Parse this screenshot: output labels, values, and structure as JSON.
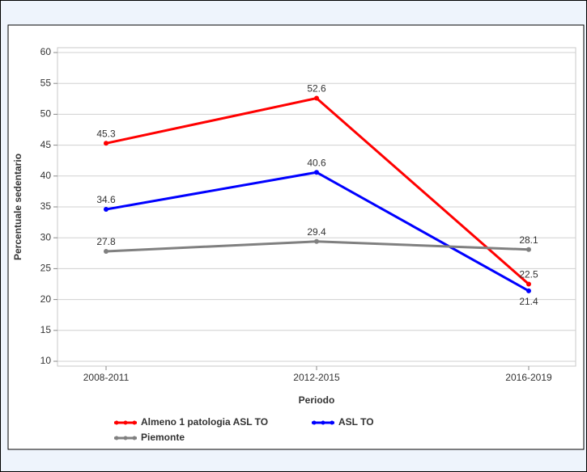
{
  "chart_data": {
    "type": "line",
    "categories": [
      "2008-2011",
      "2012-2015",
      "2016-2019"
    ],
    "series": [
      {
        "name": "Almeno 1 patologia ASL TO",
        "color": "#ff0000",
        "values": [
          45.3,
          52.6,
          22.5
        ]
      },
      {
        "name": "ASL TO",
        "color": "#0000ff",
        "values": [
          34.6,
          40.6,
          21.4
        ]
      },
      {
        "name": "Piemonte",
        "color": "#808080",
        "values": [
          27.8,
          29.4,
          28.1
        ]
      }
    ],
    "ylim": [
      10,
      60
    ],
    "yticks": [
      10,
      15,
      20,
      25,
      30,
      35,
      40,
      45,
      50,
      55,
      60
    ],
    "x_label": "Periodo",
    "y_label": "Percentuale sedentario",
    "grid": true
  }
}
